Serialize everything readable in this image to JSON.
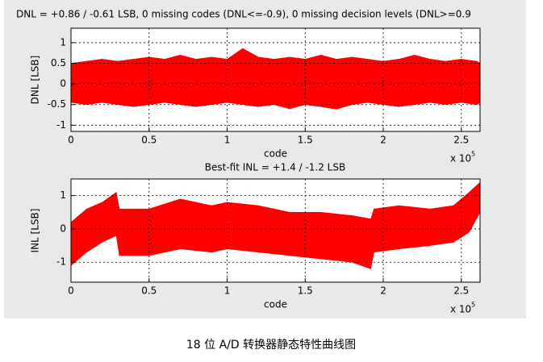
{
  "chart_data": [
    {
      "type": "band",
      "title": "DNL = +0.86 / -0.61 LSB,  0 missing codes (DNL<=-0.9), 0 missing decision levels (DNL>=0.9",
      "xlabel": "code",
      "ylabel": "DNL [LSB]",
      "x_scale_label": "x 10",
      "x_scale_exp": "5",
      "color": "#ff0000",
      "grid": true,
      "xlim": [
        0,
        2.62
      ],
      "ylim": [
        -1.15,
        1.35
      ],
      "xticks": [
        0,
        0.5,
        1,
        1.5,
        2,
        2.5
      ],
      "yticks": [
        -1,
        -0.5,
        0,
        0.5,
        1
      ],
      "x": [
        0,
        0.1,
        0.2,
        0.3,
        0.4,
        0.5,
        0.6,
        0.7,
        0.8,
        0.9,
        1,
        1.1,
        1.2,
        1.3,
        1.4,
        1.5,
        1.6,
        1.7,
        1.8,
        1.9,
        2,
        2.1,
        2.2,
        2.3,
        2.4,
        2.5,
        2.6,
        2.62
      ],
      "upper": [
        0.5,
        0.55,
        0.6,
        0.55,
        0.6,
        0.65,
        0.6,
        0.7,
        0.6,
        0.65,
        0.6,
        0.86,
        0.65,
        0.6,
        0.65,
        0.6,
        0.7,
        0.6,
        0.65,
        0.6,
        0.55,
        0.6,
        0.7,
        0.6,
        0.55,
        0.6,
        0.55,
        0.5
      ],
      "lower": [
        -0.45,
        -0.5,
        -0.45,
        -0.5,
        -0.55,
        -0.5,
        -0.45,
        -0.5,
        -0.55,
        -0.5,
        -0.45,
        -0.5,
        -0.55,
        -0.5,
        -0.6,
        -0.5,
        -0.55,
        -0.61,
        -0.5,
        -0.45,
        -0.5,
        -0.55,
        -0.5,
        -0.45,
        -0.5,
        -0.45,
        -0.5,
        -0.45
      ]
    },
    {
      "type": "band",
      "title": "Best-fit INL = +1.4 / -1.2 LSB",
      "xlabel": "code",
      "ylabel": "INL [LSB]",
      "x_scale_label": "x 10",
      "x_scale_exp": "5",
      "color": "#ff0000",
      "grid": true,
      "xlim": [
        0,
        2.62
      ],
      "ylim": [
        -1.6,
        1.5
      ],
      "xticks": [
        0,
        0.5,
        1,
        1.5,
        2,
        2.5
      ],
      "yticks": [
        -1,
        0,
        1
      ],
      "x": [
        0,
        0.1,
        0.2,
        0.29,
        0.31,
        0.5,
        0.7,
        0.9,
        1,
        1.2,
        1.4,
        1.6,
        1.8,
        1.92,
        1.94,
        2.1,
        2.3,
        2.45,
        2.55,
        2.62
      ],
      "upper": [
        0.2,
        0.6,
        0.8,
        1.1,
        0.6,
        0.6,
        0.9,
        0.7,
        0.8,
        0.7,
        0.5,
        0.5,
        0.4,
        0.3,
        0.6,
        0.7,
        0.6,
        0.7,
        1.1,
        1.4
      ],
      "lower": [
        -1.1,
        -0.7,
        -0.4,
        -0.2,
        -0.8,
        -0.8,
        -0.6,
        -0.7,
        -0.6,
        -0.7,
        -0.8,
        -0.9,
        -1.0,
        -1.2,
        -0.7,
        -0.6,
        -0.5,
        -0.4,
        -0.1,
        0.5
      ]
    }
  ],
  "caption": "18 位 A/D 转换器静态特性曲线图"
}
